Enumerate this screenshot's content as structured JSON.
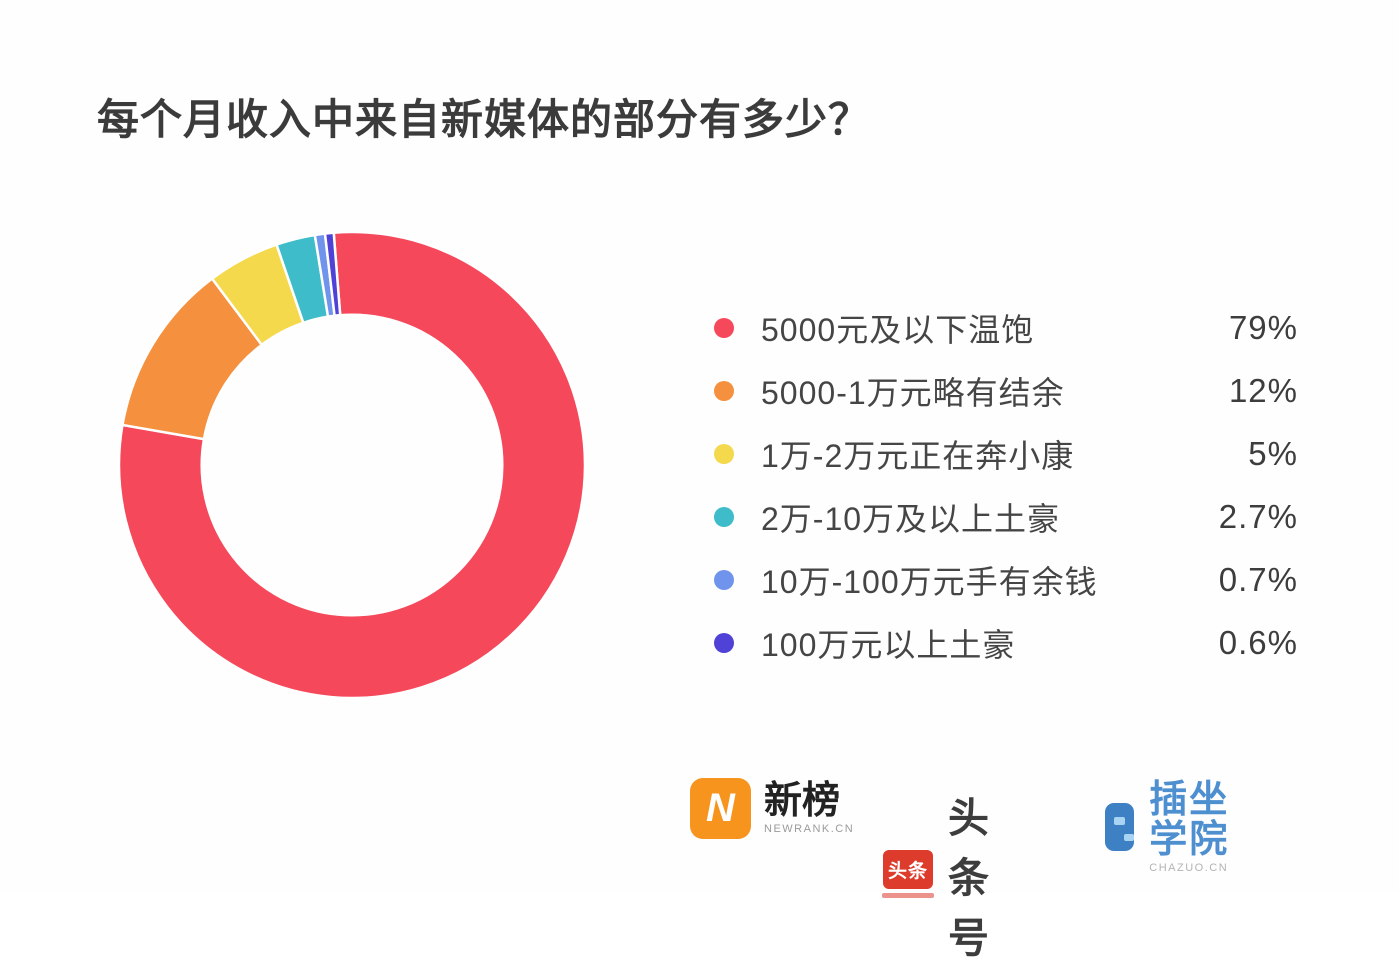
{
  "title": "每个月收入中来自新媒体的部分有多少？",
  "chart_data": {
    "type": "pie",
    "subtype": "donut",
    "title": "每个月收入中来自新媒体的部分有多少？",
    "categories": [
      "5000元及以下温饱",
      "5000-1万元略有结余",
      "1万-2万元正在奔小康",
      "2万-10万及以上土豪",
      "10万-100万元手有余钱",
      "100万元以上土豪"
    ],
    "values": [
      79,
      12,
      5,
      2.7,
      0.7,
      0.6
    ],
    "value_labels": [
      "79%",
      "12%",
      "5%",
      "2.7%",
      "0.7%",
      "0.6%"
    ],
    "colors": [
      "#f6485b",
      "#f5913e",
      "#f4d94d",
      "#3fbcc9",
      "#7094ec",
      "#5042d6"
    ],
    "start_angle_deg": -4.5,
    "direction": "clockwise",
    "inner_radius_ratio": 0.645,
    "slice_gap_color": "#ffffff",
    "legend_position": "right"
  },
  "footer": {
    "newrank": {
      "name": "新榜",
      "subtitle": "NEWRANK.CN",
      "icon_letter": "N"
    },
    "toutiao": {
      "name": "头条号",
      "icon_text": "头条"
    },
    "chazuo": {
      "name": "插坐学院",
      "subtitle": "CHAZUO.CN"
    }
  }
}
